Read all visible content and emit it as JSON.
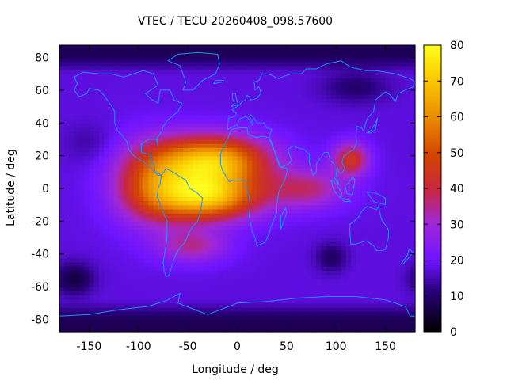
{
  "chart_data": {
    "type": "heatmap",
    "title": "VTEC / TECU 20260408_098.57600",
    "xlabel": "Longitude / deg",
    "ylabel": "Latitude / deg",
    "xlim": [
      -180,
      180
    ],
    "ylim": [
      -87.5,
      87.5
    ],
    "xticks": [
      -150,
      -100,
      -50,
      0,
      50,
      100,
      150
    ],
    "yticks": [
      -80,
      -60,
      -40,
      -20,
      0,
      20,
      40,
      60,
      80
    ],
    "colorbar": {
      "range": [
        0,
        80
      ],
      "ticks": [
        0,
        10,
        20,
        30,
        40,
        50,
        60,
        70,
        80
      ],
      "palette": "black-blue-purple-red-orange-yellow"
    },
    "field": {
      "background_tecu": 18,
      "blobs": [
        {
          "name": "equatorial anomaly north crest",
          "lon": -25,
          "lat": 17,
          "peak_tecu": 50,
          "lon_width": 55,
          "lat_width": 15
        },
        {
          "name": "equatorial anomaly south crest",
          "lon": -30,
          "lat": -5,
          "peak_tecu": 49,
          "lon_width": 52,
          "lat_width": 14
        },
        {
          "name": "western extension",
          "lon": -85,
          "lat": 3,
          "peak_tecu": 28,
          "lon_width": 40,
          "lat_width": 24
        },
        {
          "name": "southern lobe",
          "lon": -45,
          "lat": -35,
          "peak_tecu": 16,
          "lon_width": 35,
          "lat_width": 10
        },
        {
          "name": "indian ocean extension",
          "lon": 70,
          "lat": 0,
          "peak_tecu": 18,
          "lon_width": 40,
          "lat_width": 12
        },
        {
          "name": "se asia maximum",
          "lon": 115,
          "lat": 18,
          "peak_tecu": 26,
          "lon_width": 18,
          "lat_width": 10
        },
        {
          "name": "south pacific depletion",
          "lon": -165,
          "lat": -55,
          "peak_tecu": -12,
          "lon_width": 20,
          "lat_width": 10
        },
        {
          "name": "south indian depletion",
          "lon": 95,
          "lat": -42,
          "peak_tecu": -9,
          "lon_width": 16,
          "lat_width": 9
        },
        {
          "name": "siberian depletion",
          "lon": 120,
          "lat": 62,
          "peak_tecu": -8,
          "lon_width": 35,
          "lat_width": 10
        },
        {
          "name": "north pacific depletion",
          "lon": -150,
          "lat": 28,
          "peak_tecu": -4,
          "lon_width": 25,
          "lat_width": 12
        }
      ],
      "polar_caps": {
        "north_lat": 82,
        "south_lat": -80,
        "drop_tecu": 10
      }
    },
    "overlay": "coastlines"
  },
  "colors": {
    "coastline": "#1e90ff",
    "axis": "#000000",
    "background": "#ffffff"
  }
}
